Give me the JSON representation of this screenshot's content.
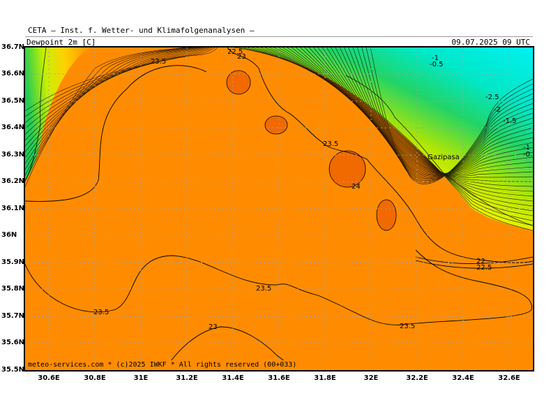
{
  "header": {
    "title": "CETA – Inst. f. Wetter- und Klimafolgenanalysen –",
    "parameter": "Dewpoint_2m [C]",
    "valid_time": "09.07.2025 09 UTC"
  },
  "footer": {
    "copyright": "meteo-services.com * (c)2025 IWKF * All rights reserved (00+033)"
  },
  "axes": {
    "lat_labels": [
      "36.7N",
      "36.6N",
      "36.5N",
      "36.4N",
      "36.3N",
      "36.2N",
      "36.1N",
      "36N",
      "35.9N",
      "35.8N",
      "35.7N",
      "35.6N",
      "35.5N"
    ],
    "lon_labels": [
      "30.6E",
      "30.8E",
      "31E",
      "31.2E",
      "31.4E",
      "31.6E",
      "31.8E",
      "32E",
      "32.2E",
      "32.4E",
      "32.6E"
    ]
  },
  "place_names": [
    {
      "name": "Gazipasa"
    }
  ],
  "contour_labels": [
    {
      "value": "23.5"
    },
    {
      "value": "22.5"
    },
    {
      "value": "23"
    },
    {
      "value": "23.5"
    },
    {
      "value": "24"
    },
    {
      "value": "22"
    },
    {
      "value": "22.5"
    },
    {
      "value": "23.5"
    },
    {
      "value": "23.5"
    },
    {
      "value": "23.5"
    },
    {
      "value": "23"
    },
    {
      "value": "-1"
    },
    {
      "value": "-0.5"
    },
    {
      "value": "-2.5"
    },
    {
      "value": "-2"
    },
    {
      "value": "-1.5"
    },
    {
      "value": "-1"
    },
    {
      "value": "-0.5"
    }
  ],
  "colors": {
    "orange_fill": "#ff8c00",
    "hot_spot": "#f06a00",
    "yellow": "#f5f500",
    "green": "#22cc55",
    "cyan": "#00eeee",
    "grid": "#a0a0a0"
  },
  "map_data": {
    "type": "contour-map",
    "variable": "Dewpoint_2m",
    "unit": "C",
    "lat_range": [
      35.5,
      36.7
    ],
    "lon_range": [
      30.5,
      32.7
    ],
    "grid": true
  }
}
